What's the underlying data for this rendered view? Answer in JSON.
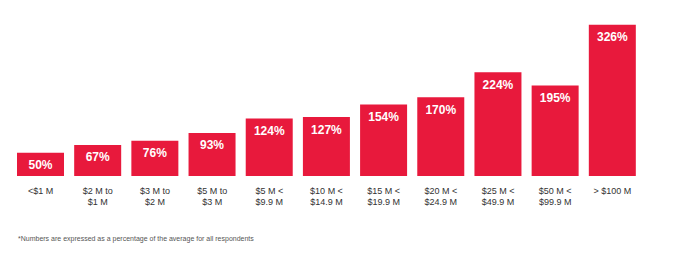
{
  "chart_data": {
    "type": "bar",
    "categories": [
      "<$1 M",
      "$2 M to $1 M",
      "$3 M to $2 M",
      "$5 M to $3 M",
      "$5 M < $9.9 M",
      "$10 M < $14.9 M",
      "$15 M < $19.9 M",
      "$20 M < $24.9 M",
      "$25 M < $49.9 M",
      "$50 M < $99.9 M",
      "> $100 M"
    ],
    "values": [
      50,
      67,
      76,
      93,
      124,
      127,
      154,
      170,
      224,
      195,
      326
    ],
    "value_labels": [
      "50%",
      "67%",
      "76%",
      "93%",
      "124%",
      "127%",
      "154%",
      "170%",
      "224%",
      "195%",
      "326%"
    ],
    "data_labels": true,
    "color": "#e8193c",
    "ylim": [
      0,
      330
    ],
    "tick_labels": "x",
    "grid": false,
    "footnote": "*Numbers are expressed as a percentage of the average for all respondents"
  }
}
